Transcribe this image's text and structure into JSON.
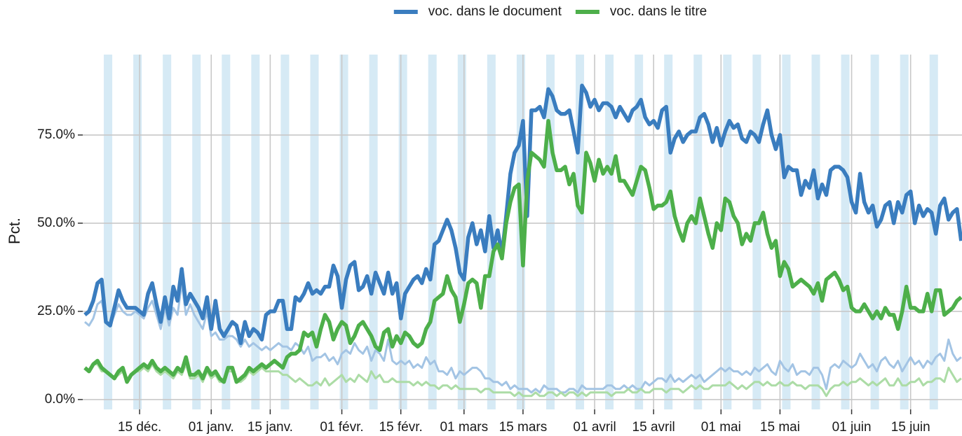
{
  "chart_data": {
    "type": "line",
    "y_label": "Pct.",
    "xlim": [
      -0.5,
      208.2
    ],
    "ylim": [
      -2.8,
      97.8
    ],
    "xticks": [
      {
        "value": 13,
        "label": "15 déc."
      },
      {
        "value": 30,
        "label": "01 janv."
      },
      {
        "value": 44,
        "label": "15 janv."
      },
      {
        "value": 61,
        "label": "01 févr."
      },
      {
        "value": 75,
        "label": "15 févr."
      },
      {
        "value": 90,
        "label": "01 mars"
      },
      {
        "value": 104,
        "label": "15 mars"
      },
      {
        "value": 121,
        "label": "01 avril"
      },
      {
        "value": 135,
        "label": "15 avril"
      },
      {
        "value": 151,
        "label": "01 mai"
      },
      {
        "value": 165,
        "label": "15 mai"
      },
      {
        "value": 182,
        "label": "01 juin"
      },
      {
        "value": 196,
        "label": "15 juin"
      }
    ],
    "yticks": [
      {
        "value": 0,
        "label": "0.0%"
      },
      {
        "value": 25,
        "label": "25.0%"
      },
      {
        "value": 50,
        "label": "50.0%"
      },
      {
        "value": 75,
        "label": "75.0%"
      }
    ],
    "grid": true,
    "legend_position": "top",
    "weekend_color": "#d6eaf5",
    "weekends": [
      5,
      12,
      19,
      26,
      33,
      40,
      47,
      54,
      61,
      68,
      75,
      82,
      89,
      96,
      103,
      110,
      117,
      124,
      131,
      138,
      145,
      152,
      159,
      166,
      173,
      180,
      187,
      194,
      201
    ],
    "x": [
      0,
      1,
      2,
      3,
      4,
      5,
      6,
      7,
      8,
      9,
      10,
      11,
      12,
      13,
      14,
      15,
      16,
      17,
      18,
      19,
      20,
      21,
      22,
      23,
      24,
      25,
      26,
      27,
      28,
      29,
      30,
      31,
      32,
      33,
      34,
      35,
      36,
      37,
      38,
      39,
      40,
      41,
      42,
      43,
      44,
      45,
      46,
      47,
      48,
      49,
      50,
      51,
      52,
      53,
      54,
      55,
      56,
      57,
      58,
      59,
      60,
      61,
      62,
      63,
      64,
      65,
      66,
      67,
      68,
      69,
      70,
      71,
      72,
      73,
      74,
      75,
      76,
      77,
      78,
      79,
      80,
      81,
      82,
      83,
      84,
      85,
      86,
      87,
      88,
      89,
      90,
      91,
      92,
      93,
      94,
      95,
      96,
      97,
      98,
      99,
      100,
      101,
      102,
      103,
      104,
      105,
      106,
      107,
      108,
      109,
      110,
      111,
      112,
      113,
      114,
      115,
      116,
      117,
      118,
      119,
      120,
      121,
      122,
      123,
      124,
      125,
      126,
      127,
      128,
      129,
      130,
      131,
      132,
      133,
      134,
      135,
      136,
      137,
      138,
      139,
      140,
      141,
      142,
      143,
      144,
      145,
      146,
      147,
      148,
      149,
      150,
      151,
      152,
      153,
      154,
      155,
      156,
      157,
      158,
      159,
      160,
      161,
      162,
      163,
      164,
      165,
      166,
      167,
      168,
      169,
      170,
      171,
      172,
      173,
      174,
      175,
      176,
      177,
      178,
      179,
      180,
      181,
      182,
      183,
      184,
      185,
      186,
      187,
      188,
      189,
      190,
      191,
      192,
      193,
      194,
      195,
      196,
      197,
      198,
      199,
      200,
      201,
      202,
      203,
      204,
      205,
      206,
      207,
      208
    ],
    "series": [
      {
        "color": "#a3c4e4",
        "width": 3,
        "values": [
          22,
          21,
          23,
          27,
          28,
          22,
          21,
          24,
          27,
          25,
          24,
          24,
          25,
          24,
          23,
          26,
          28,
          24,
          20,
          26,
          21,
          26,
          24,
          33,
          24,
          27,
          24,
          22,
          20,
          25,
          18,
          19,
          17,
          17,
          18,
          18,
          17,
          15,
          17,
          15,
          16,
          15,
          14,
          15,
          14,
          15,
          16,
          15,
          15,
          14,
          16,
          15,
          13,
          15,
          11,
          12,
          12,
          13,
          11,
          12,
          10,
          13,
          14,
          13,
          16,
          14,
          13,
          15,
          11,
          14,
          13,
          11,
          17,
          11,
          10,
          11,
          10,
          11,
          9,
          10,
          9,
          12,
          10,
          11,
          8,
          8,
          7,
          9,
          6,
          8,
          7,
          8,
          9,
          9,
          8,
          6,
          6,
          5,
          5,
          4,
          5,
          3,
          4,
          3,
          3,
          3,
          2,
          3,
          2,
          4,
          3,
          3,
          3,
          2,
          2,
          3,
          3,
          2,
          4,
          3,
          3,
          3,
          3,
          3,
          4,
          4,
          3,
          3,
          4,
          3,
          4,
          3,
          3,
          5,
          4,
          5,
          6,
          6,
          5,
          7,
          5,
          6,
          5,
          6,
          7,
          6,
          7,
          5,
          6,
          7,
          8,
          9,
          8,
          9,
          8,
          8,
          7,
          8,
          7,
          9,
          8,
          9,
          10,
          8,
          7,
          11,
          9,
          8,
          10,
          7,
          8,
          8,
          7,
          9,
          9,
          7,
          3,
          9,
          10,
          9,
          11,
          10,
          9,
          10,
          13,
          11,
          9,
          10,
          8,
          11,
          12,
          10,
          9,
          11,
          8,
          10,
          12,
          10,
          11,
          9,
          11,
          10,
          12,
          13,
          11,
          17,
          13,
          11,
          12
        ]
      },
      {
        "color": "#acdca6",
        "width": 3,
        "values": [
          9,
          8,
          10,
          10,
          8,
          8,
          7,
          6,
          7,
          8,
          5,
          7,
          8,
          8,
          9,
          8,
          10,
          8,
          7,
          8,
          7,
          6,
          8,
          7,
          10,
          6,
          6,
          7,
          5,
          8,
          6,
          7,
          5,
          5,
          8,
          8,
          5,
          5,
          6,
          8,
          7,
          8,
          9,
          8,
          8,
          8,
          8,
          7,
          7,
          6,
          5,
          6,
          5,
          4,
          4,
          5,
          4,
          6,
          4,
          5,
          6,
          7,
          5,
          6,
          5,
          7,
          6,
          5,
          8,
          6,
          7,
          5,
          5,
          6,
          5,
          5,
          5,
          5,
          4,
          5,
          4,
          5,
          4,
          4,
          3,
          4,
          4,
          3,
          4,
          3,
          3,
          3,
          3,
          3,
          2,
          3,
          3,
          2,
          2,
          2,
          2,
          2,
          1,
          2,
          1,
          1,
          1,
          2,
          1,
          1,
          2,
          2,
          1,
          2,
          1,
          2,
          2,
          1,
          2,
          1,
          2,
          2,
          2,
          2,
          2,
          1,
          2,
          2,
          2,
          3,
          2,
          2,
          3,
          2,
          2,
          3,
          3,
          3,
          2,
          3,
          3,
          3,
          2,
          3,
          4,
          3,
          4,
          3,
          3,
          4,
          4,
          4,
          4,
          5,
          4,
          3,
          4,
          3,
          4,
          5,
          5,
          4,
          5,
          4,
          4,
          5,
          4,
          4,
          5,
          4,
          4,
          3,
          4,
          4,
          4,
          3,
          1,
          3,
          4,
          4,
          5,
          4,
          5,
          5,
          6,
          5,
          4,
          5,
          4,
          5,
          6,
          4,
          4,
          6,
          4,
          4,
          5,
          5,
          6,
          4,
          5,
          5,
          6,
          6,
          5,
          9,
          7,
          5,
          6
        ]
      },
      {
        "name": "voc. dans le document",
        "color": "#3a7dbf",
        "width": 5.5,
        "values": [
          24,
          25,
          28,
          33,
          34,
          22,
          21,
          26,
          31,
          28,
          26,
          26,
          26,
          25,
          24,
          30,
          33,
          27,
          22,
          29,
          23,
          32,
          28,
          37,
          27,
          30,
          28,
          26,
          23,
          29,
          20,
          28,
          20,
          18,
          20,
          22,
          21,
          16,
          22,
          18,
          20,
          19,
          17,
          24,
          25,
          25,
          28,
          28,
          20,
          20,
          29,
          28,
          30,
          33,
          30,
          31,
          30,
          32,
          32,
          38,
          35,
          26,
          34,
          38,
          39,
          31,
          32,
          35,
          30,
          36,
          33,
          30,
          36,
          30,
          33,
          23,
          30,
          32,
          34,
          35,
          33,
          37,
          34,
          44,
          45,
          48,
          51,
          48,
          43,
          36,
          34,
          46,
          50,
          44,
          48,
          42,
          52,
          43,
          48,
          41,
          52,
          64,
          70,
          72,
          79,
          52,
          82,
          82,
          83,
          80,
          88,
          86,
          82,
          81,
          81,
          82,
          76,
          70,
          89,
          87,
          83,
          85,
          82,
          84,
          84,
          83,
          80,
          83,
          81,
          79,
          82,
          83,
          85,
          80,
          78,
          79,
          77,
          82,
          83,
          70,
          74,
          76,
          73,
          75,
          76,
          76,
          80,
          81,
          78,
          73,
          77,
          72,
          76,
          79,
          77,
          78,
          74,
          73,
          76,
          75,
          73,
          78,
          82,
          75,
          71,
          75,
          63,
          66,
          65,
          65,
          58,
          62,
          60,
          65,
          57,
          61,
          58,
          65,
          66,
          66,
          65,
          63,
          56,
          53,
          64,
          56,
          53,
          55,
          49,
          51,
          55,
          56,
          50,
          56,
          53,
          58,
          59,
          50,
          55,
          52,
          54,
          53,
          47,
          55,
          57,
          51,
          53,
          54,
          45
        ]
      },
      {
        "name": "voc. dans le titre",
        "color": "#4daf4a",
        "width": 5.5,
        "values": [
          9,
          8,
          10,
          11,
          9,
          8,
          7,
          6,
          8,
          9,
          5,
          7,
          8,
          9,
          10,
          9,
          11,
          9,
          8,
          9,
          8,
          7,
          9,
          8,
          12,
          7,
          7,
          8,
          6,
          9,
          7,
          8,
          6,
          5,
          9,
          9,
          5,
          6,
          7,
          9,
          8,
          9,
          10,
          9,
          10,
          11,
          10,
          9,
          12,
          13,
          13,
          14,
          19,
          18,
          19,
          15,
          20,
          24,
          22,
          17,
          20,
          22,
          21,
          16,
          18,
          21,
          22,
          20,
          18,
          15,
          14,
          19,
          20,
          15,
          18,
          16,
          19,
          18,
          16,
          15,
          16,
          20,
          22,
          28,
          29,
          30,
          35,
          31,
          29,
          22,
          27,
          33,
          34,
          33,
          26,
          35,
          35,
          42,
          44,
          40,
          50,
          56,
          60,
          61,
          38,
          62,
          70,
          69,
          68,
          66,
          79,
          70,
          65,
          65,
          66,
          61,
          64,
          55,
          53,
          70,
          67,
          62,
          68,
          64,
          66,
          64,
          69,
          62,
          62,
          60,
          58,
          62,
          66,
          65,
          60,
          54,
          55,
          55,
          56,
          59,
          52,
          48,
          45,
          50,
          52,
          50,
          57,
          52,
          47,
          43,
          50,
          48,
          57,
          56,
          52,
          50,
          44,
          47,
          45,
          50,
          50,
          53,
          47,
          43,
          45,
          35,
          39,
          37,
          32,
          33,
          34,
          33,
          32,
          30,
          33,
          28,
          34,
          35,
          36,
          34,
          31,
          32,
          26,
          25,
          25,
          27,
          25,
          23,
          25,
          23,
          26,
          24,
          24,
          20,
          25,
          32,
          26,
          26,
          25,
          25,
          30,
          25,
          31,
          31,
          24,
          25,
          26,
          28,
          29
        ]
      }
    ]
  }
}
